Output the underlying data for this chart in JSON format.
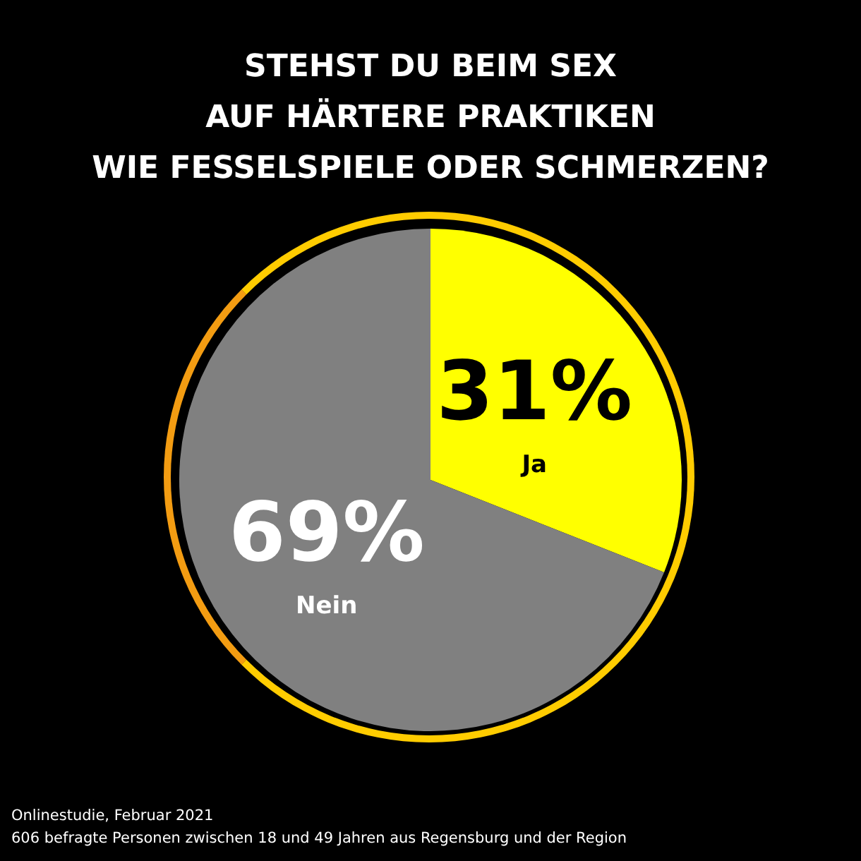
{
  "chart_data": {
    "type": "pie",
    "title": "STEHST DU BEIM SEX\nAUF HÄRTERE PRAKTIKEN\nWIE FESSELSPIELE ODER SCHMERZEN?",
    "categories": [
      "Ja",
      "Nein"
    ],
    "values": [
      31,
      69
    ],
    "value_labels": [
      "31%",
      "69%"
    ],
    "colors": [
      "#ffff00",
      "#808080"
    ],
    "legend": false,
    "annotations": [
      "Onlinestudie, Februar 2021",
      "606 befragte Personen zwischen 18 und 49 Jahren aus Regensburg und der Region"
    ]
  }
}
